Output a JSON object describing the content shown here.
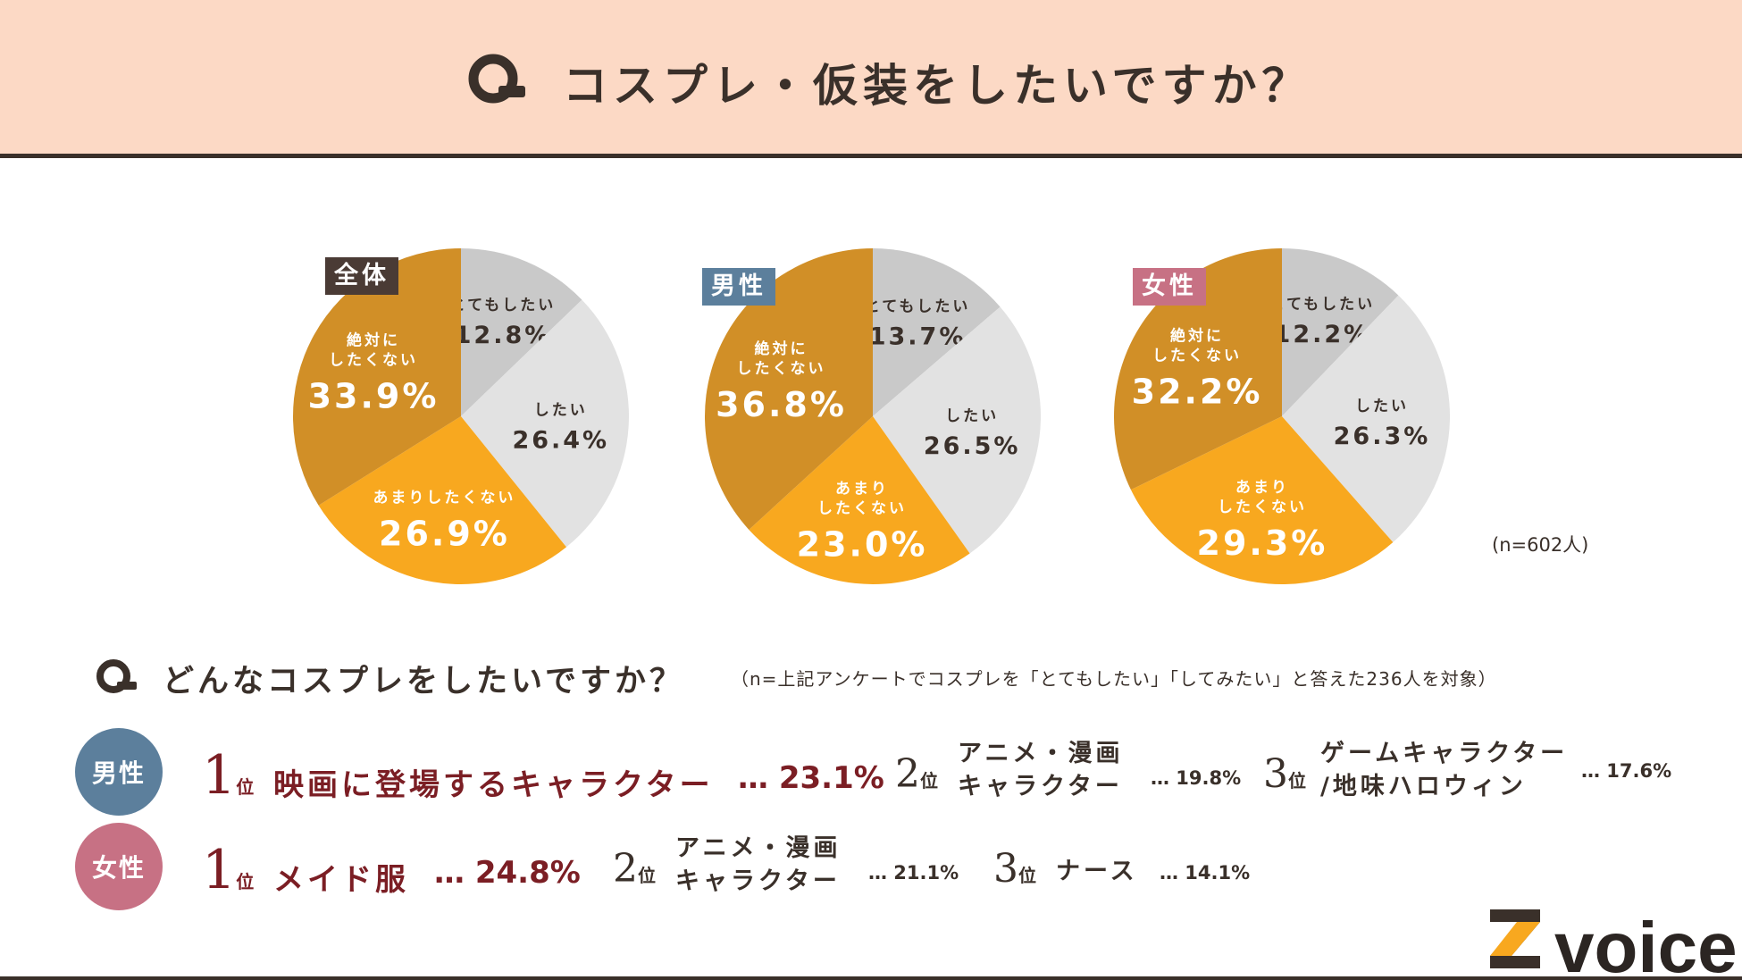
{
  "page": {
    "title": "コスプレ・仮装をしたいですか？",
    "sample_note": "(n=602人)"
  },
  "colors": {
    "header_bg": "#fcd9c5",
    "dark": "#3a302a",
    "never": "#d18f27",
    "not_much": "#f8a81f",
    "want": "#e2e2e2",
    "very_want": "#c9c9c9",
    "badge_all": "#4a3b35",
    "badge_male": "#5c7f9c",
    "badge_female": "#c77184",
    "accent_red": "#7b1e24"
  },
  "chart_data": [
    {
      "type": "pie",
      "title": "全体",
      "slices": [
        {
          "label": "とてもしたい",
          "value": 12.8,
          "text": "12.8%"
        },
        {
          "label": "したい",
          "value": 26.4,
          "text": "26.4%"
        },
        {
          "label": "あまりしたくない",
          "value": 26.9,
          "text": "26.9%"
        },
        {
          "label": "絶対に したくない",
          "value": 33.9,
          "text": "33.9%"
        }
      ]
    },
    {
      "type": "pie",
      "title": "男性",
      "slices": [
        {
          "label": "とてもしたい",
          "value": 13.7,
          "text": "13.7%"
        },
        {
          "label": "したい",
          "value": 26.5,
          "text": "26.5%"
        },
        {
          "label": "あまり したくない",
          "value": 23.0,
          "text": "23.0%"
        },
        {
          "label": "絶対に したくない",
          "value": 36.8,
          "text": "36.8%"
        }
      ]
    },
    {
      "type": "pie",
      "title": "女性",
      "slices": [
        {
          "label": "とてもしたい",
          "value": 12.2,
          "text": "12.2%"
        },
        {
          "label": "したい",
          "value": 26.3,
          "text": "26.3%"
        },
        {
          "label": "あまり したくない",
          "value": 29.3,
          "text": "29.3%"
        },
        {
          "label": "絶対に したくない",
          "value": 32.2,
          "text": "32.2%"
        }
      ]
    }
  ],
  "section2": {
    "question": "どんなコスプレをしたいですか？",
    "note": "（n=上記アンケートでコスプレを「とてもしたい」「してみたい」と答えた236人を対象）",
    "rank_unit": "位",
    "male": {
      "label": "男性",
      "r1": {
        "num": "1",
        "item": "映画に登場するキャラクター",
        "pct": "… 23.1%"
      },
      "r2": {
        "num": "2",
        "line1": "アニメ・漫画",
        "line2": "キャラクター",
        "pct": "… 19.8%"
      },
      "r3": {
        "num": "3",
        "line1": "ゲームキャラクター",
        "line2": "/地味ハロウィン",
        "pct": "… 17.6%"
      }
    },
    "female": {
      "label": "女性",
      "r1": {
        "num": "1",
        "item": "メイド服",
        "pct": "… 24.8%"
      },
      "r2": {
        "num": "2",
        "line1": "アニメ・漫画",
        "line2": "キャラクター",
        "pct": "… 21.1%"
      },
      "r3": {
        "num": "3",
        "item": "ナース",
        "pct": "… 14.1%"
      }
    }
  },
  "brand": {
    "name": "voice"
  }
}
